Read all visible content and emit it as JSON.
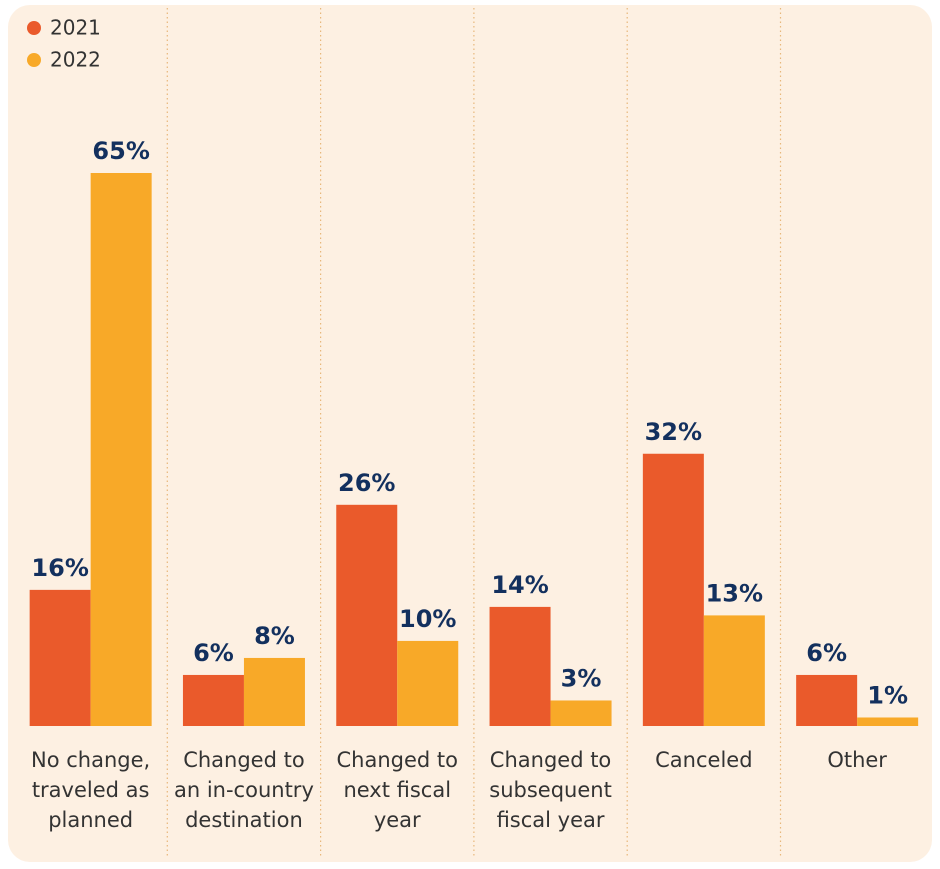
{
  "chart_data": {
    "type": "bar",
    "categories": [
      "No change, traveled as planned",
      "Changed to an in-country destination",
      "Changed to next fiscal year",
      "Changed to subsequent fiscal year",
      "Canceled",
      "Other"
    ],
    "series": [
      {
        "name": "2021",
        "color": "#ea5a2b",
        "values": [
          16,
          6,
          26,
          14,
          32,
          6
        ],
        "value_labels": [
          "16%",
          "6%",
          "26%",
          "14%",
          "32%",
          "6%"
        ]
      },
      {
        "name": "2022",
        "color": "#f8a928",
        "values": [
          65,
          8,
          10,
          3,
          13,
          1
        ],
        "value_labels": [
          "65%",
          "8%",
          "10%",
          "3%",
          "13%",
          "1%"
        ]
      }
    ],
    "legend": "top-left"
  }
}
